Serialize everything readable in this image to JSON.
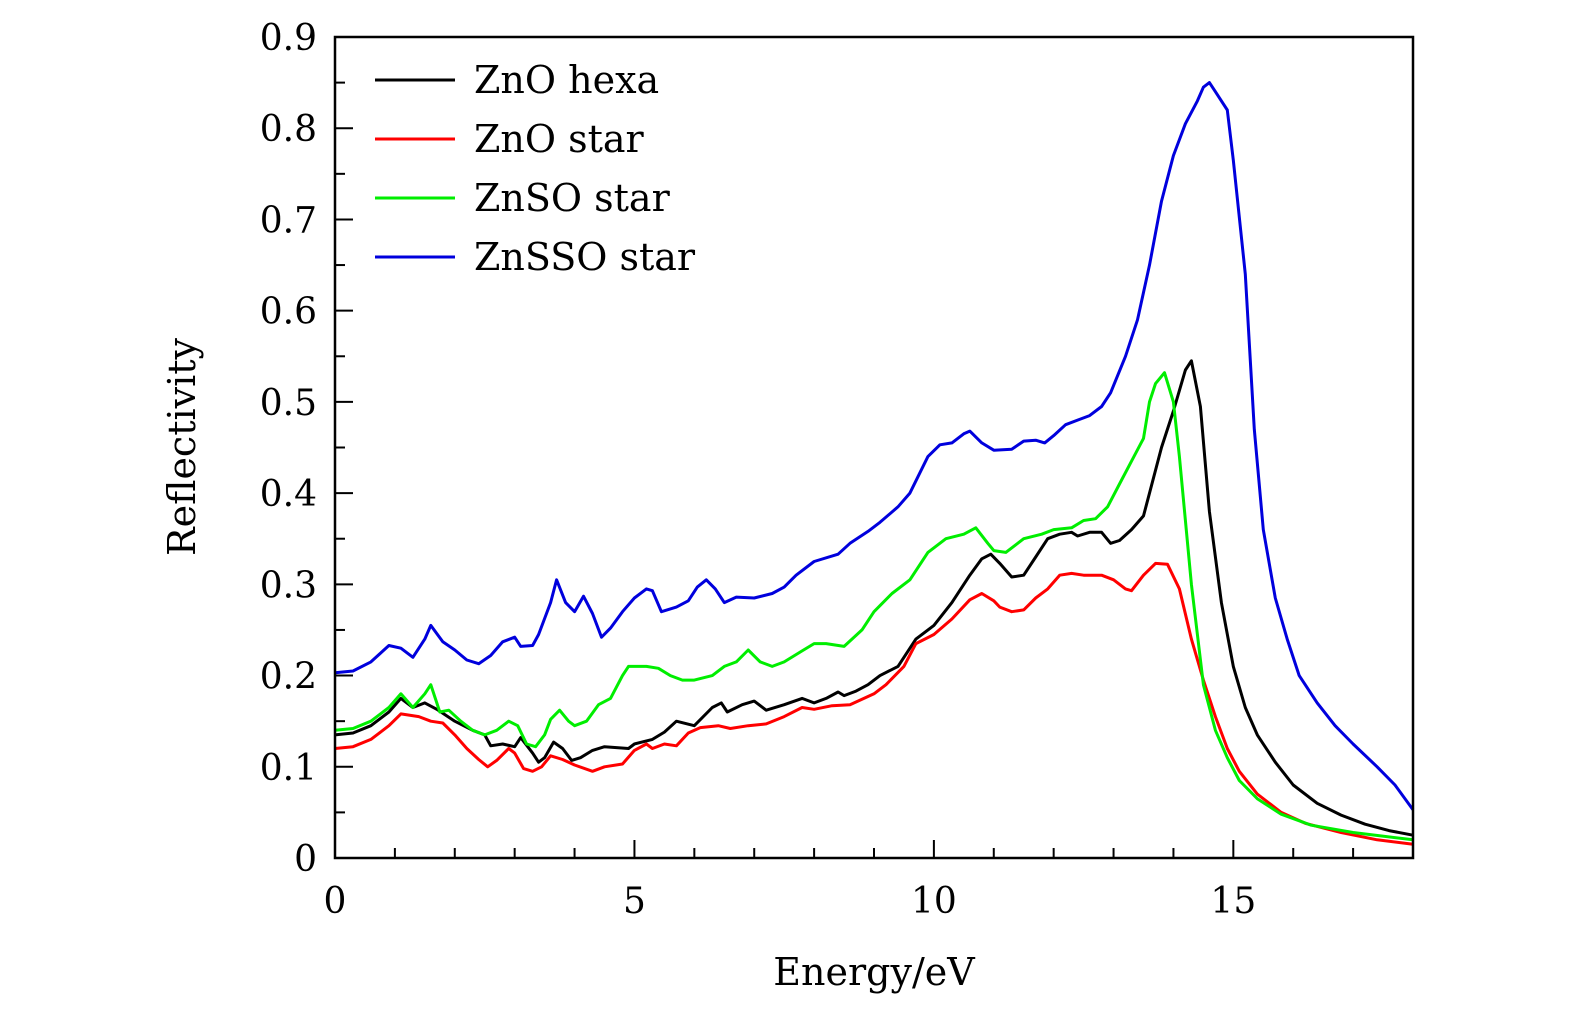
{
  "chart_data": {
    "type": "line",
    "title": "",
    "xlabel": "Energy/eV",
    "ylabel": "Reflectivity",
    "xlim": [
      0,
      18
    ],
    "ylim": [
      0,
      0.9
    ],
    "xticks": [
      0,
      5,
      10,
      15
    ],
    "xtick_labels": [
      "0",
      "5",
      "10",
      "15"
    ],
    "yticks": [
      0,
      0.1,
      0.2,
      0.3,
      0.4,
      0.5,
      0.6,
      0.7,
      0.8,
      0.9
    ],
    "ytick_labels": [
      "0",
      "0.1",
      "0.2",
      "0.3",
      "0.4",
      "0.5",
      "0.6",
      "0.7",
      "0.8",
      "0.9"
    ],
    "grid": false,
    "legend_position": "top-left",
    "series": [
      {
        "name": "ZnO hexa",
        "color": "#000000",
        "x": [
          0,
          0.3,
          0.6,
          0.9,
          1.1,
          1.3,
          1.5,
          1.7,
          2.0,
          2.3,
          2.5,
          2.6,
          2.8,
          3.0,
          3.1,
          3.3,
          3.4,
          3.5,
          3.65,
          3.8,
          3.95,
          4.1,
          4.3,
          4.5,
          4.9,
          5.0,
          5.3,
          5.5,
          5.7,
          6.0,
          6.3,
          6.45,
          6.55,
          6.8,
          7.0,
          7.2,
          7.5,
          7.8,
          8.0,
          8.2,
          8.4,
          8.5,
          8.7,
          8.9,
          9.1,
          9.4,
          9.7,
          10.0,
          10.3,
          10.6,
          10.8,
          10.95,
          11.1,
          11.3,
          11.5,
          11.7,
          11.9,
          12.1,
          12.3,
          12.4,
          12.6,
          12.8,
          12.95,
          13.1,
          13.3,
          13.5,
          13.6,
          13.8,
          14.0,
          14.2,
          14.3,
          14.45,
          14.6,
          14.8,
          15.0,
          15.2,
          15.4,
          15.7,
          16.0,
          16.4,
          16.8,
          17.2,
          17.6,
          18
        ],
        "y": [
          0.135,
          0.137,
          0.145,
          0.16,
          0.175,
          0.165,
          0.17,
          0.163,
          0.15,
          0.14,
          0.135,
          0.123,
          0.125,
          0.122,
          0.132,
          0.115,
          0.105,
          0.11,
          0.127,
          0.12,
          0.107,
          0.11,
          0.118,
          0.122,
          0.12,
          0.125,
          0.13,
          0.138,
          0.15,
          0.145,
          0.165,
          0.17,
          0.16,
          0.168,
          0.172,
          0.162,
          0.168,
          0.175,
          0.17,
          0.175,
          0.182,
          0.178,
          0.183,
          0.19,
          0.2,
          0.21,
          0.24,
          0.255,
          0.28,
          0.31,
          0.328,
          0.333,
          0.323,
          0.308,
          0.31,
          0.33,
          0.35,
          0.355,
          0.357,
          0.353,
          0.357,
          0.357,
          0.345,
          0.348,
          0.36,
          0.375,
          0.4,
          0.45,
          0.49,
          0.535,
          0.545,
          0.495,
          0.38,
          0.28,
          0.21,
          0.165,
          0.135,
          0.105,
          0.08,
          0.06,
          0.047,
          0.037,
          0.03,
          0.025
        ]
      },
      {
        "name": "ZnO star",
        "color": "#ff0000",
        "x": [
          0,
          0.3,
          0.6,
          0.9,
          1.1,
          1.4,
          1.6,
          1.8,
          2.0,
          2.2,
          2.4,
          2.55,
          2.7,
          2.9,
          3.0,
          3.15,
          3.3,
          3.45,
          3.6,
          3.8,
          4.0,
          4.3,
          4.5,
          4.8,
          5.0,
          5.2,
          5.3,
          5.5,
          5.7,
          5.9,
          6.1,
          6.4,
          6.6,
          6.9,
          7.2,
          7.5,
          7.8,
          8.0,
          8.3,
          8.6,
          9.0,
          9.2,
          9.5,
          9.7,
          10.0,
          10.3,
          10.6,
          10.8,
          11.0,
          11.1,
          11.3,
          11.5,
          11.7,
          11.9,
          12.1,
          12.3,
          12.5,
          12.8,
          13.0,
          13.2,
          13.3,
          13.5,
          13.7,
          13.9,
          14.1,
          14.3,
          14.5,
          14.7,
          14.9,
          15.1,
          15.4,
          15.8,
          16.2,
          16.8,
          17.4,
          18
        ],
        "y": [
          0.12,
          0.122,
          0.13,
          0.145,
          0.158,
          0.155,
          0.15,
          0.148,
          0.135,
          0.12,
          0.108,
          0.1,
          0.107,
          0.12,
          0.115,
          0.098,
          0.095,
          0.1,
          0.112,
          0.108,
          0.102,
          0.095,
          0.1,
          0.103,
          0.118,
          0.125,
          0.12,
          0.125,
          0.123,
          0.137,
          0.143,
          0.145,
          0.142,
          0.145,
          0.147,
          0.155,
          0.165,
          0.163,
          0.167,
          0.168,
          0.18,
          0.19,
          0.21,
          0.235,
          0.245,
          0.262,
          0.283,
          0.29,
          0.282,
          0.275,
          0.27,
          0.272,
          0.285,
          0.295,
          0.31,
          0.312,
          0.31,
          0.31,
          0.305,
          0.295,
          0.293,
          0.31,
          0.323,
          0.322,
          0.295,
          0.24,
          0.195,
          0.155,
          0.12,
          0.095,
          0.07,
          0.05,
          0.038,
          0.028,
          0.02,
          0.015
        ]
      },
      {
        "name": "ZnSO star",
        "color": "#00ee00",
        "x": [
          0,
          0.3,
          0.6,
          0.9,
          1.1,
          1.3,
          1.5,
          1.6,
          1.75,
          1.9,
          2.1,
          2.3,
          2.5,
          2.7,
          2.9,
          3.05,
          3.2,
          3.35,
          3.5,
          3.6,
          3.75,
          3.9,
          4.0,
          4.2,
          4.4,
          4.6,
          4.8,
          4.9,
          5.2,
          5.4,
          5.6,
          5.8,
          6.0,
          6.3,
          6.5,
          6.7,
          6.9,
          7.1,
          7.3,
          7.5,
          7.8,
          8.0,
          8.2,
          8.5,
          8.8,
          9.0,
          9.3,
          9.6,
          9.9,
          10.2,
          10.5,
          10.7,
          10.9,
          11.0,
          11.2,
          11.5,
          11.8,
          12.0,
          12.3,
          12.5,
          12.7,
          12.9,
          13.1,
          13.3,
          13.5,
          13.6,
          13.7,
          13.85,
          14.0,
          14.1,
          14.3,
          14.5,
          14.7,
          14.9,
          15.1,
          15.4,
          15.8,
          16.3,
          17.0,
          18
        ],
        "y": [
          0.14,
          0.142,
          0.15,
          0.165,
          0.18,
          0.165,
          0.18,
          0.19,
          0.16,
          0.162,
          0.15,
          0.14,
          0.135,
          0.14,
          0.15,
          0.145,
          0.125,
          0.122,
          0.135,
          0.152,
          0.162,
          0.15,
          0.145,
          0.15,
          0.168,
          0.175,
          0.2,
          0.21,
          0.21,
          0.208,
          0.2,
          0.195,
          0.195,
          0.2,
          0.21,
          0.215,
          0.228,
          0.215,
          0.21,
          0.215,
          0.227,
          0.235,
          0.235,
          0.232,
          0.25,
          0.27,
          0.29,
          0.305,
          0.335,
          0.35,
          0.355,
          0.362,
          0.345,
          0.337,
          0.335,
          0.35,
          0.355,
          0.36,
          0.362,
          0.37,
          0.372,
          0.385,
          0.41,
          0.435,
          0.46,
          0.5,
          0.52,
          0.532,
          0.5,
          0.44,
          0.3,
          0.19,
          0.14,
          0.11,
          0.085,
          0.065,
          0.048,
          0.036,
          0.028,
          0.02
        ]
      },
      {
        "name": "ZnSSO star",
        "color": "#0000dd",
        "x": [
          0,
          0.3,
          0.6,
          0.9,
          1.1,
          1.3,
          1.5,
          1.6,
          1.8,
          2.0,
          2.2,
          2.4,
          2.6,
          2.8,
          3.0,
          3.1,
          3.3,
          3.4,
          3.6,
          3.7,
          3.85,
          4.0,
          4.15,
          4.3,
          4.45,
          4.6,
          4.8,
          5.0,
          5.2,
          5.3,
          5.45,
          5.7,
          5.9,
          6.05,
          6.2,
          6.35,
          6.5,
          6.7,
          7.0,
          7.3,
          7.5,
          7.7,
          8.0,
          8.4,
          8.6,
          8.9,
          9.1,
          9.4,
          9.6,
          9.9,
          10.1,
          10.3,
          10.5,
          10.6,
          10.8,
          11.0,
          11.3,
          11.5,
          11.7,
          11.85,
          12.0,
          12.2,
          12.4,
          12.6,
          12.8,
          12.95,
          13.2,
          13.4,
          13.6,
          13.8,
          14.0,
          14.2,
          14.4,
          14.5,
          14.6,
          14.7,
          14.9,
          15.0,
          15.2,
          15.35,
          15.5,
          15.7,
          15.9,
          16.1,
          16.4,
          16.7,
          17.0,
          17.4,
          17.7,
          18
        ],
        "y": [
          0.203,
          0.205,
          0.215,
          0.233,
          0.23,
          0.22,
          0.24,
          0.255,
          0.237,
          0.228,
          0.217,
          0.213,
          0.222,
          0.237,
          0.242,
          0.232,
          0.233,
          0.245,
          0.28,
          0.305,
          0.28,
          0.27,
          0.287,
          0.268,
          0.242,
          0.252,
          0.27,
          0.285,
          0.295,
          0.293,
          0.27,
          0.275,
          0.282,
          0.297,
          0.305,
          0.295,
          0.28,
          0.286,
          0.285,
          0.29,
          0.297,
          0.31,
          0.325,
          0.333,
          0.345,
          0.358,
          0.368,
          0.385,
          0.4,
          0.44,
          0.453,
          0.455,
          0.465,
          0.468,
          0.455,
          0.447,
          0.448,
          0.457,
          0.458,
          0.455,
          0.463,
          0.475,
          0.48,
          0.485,
          0.495,
          0.51,
          0.55,
          0.59,
          0.65,
          0.72,
          0.77,
          0.805,
          0.83,
          0.845,
          0.85,
          0.84,
          0.82,
          0.765,
          0.64,
          0.47,
          0.36,
          0.285,
          0.24,
          0.2,
          0.17,
          0.145,
          0.125,
          0.1,
          0.08,
          0.053
        ]
      }
    ]
  }
}
